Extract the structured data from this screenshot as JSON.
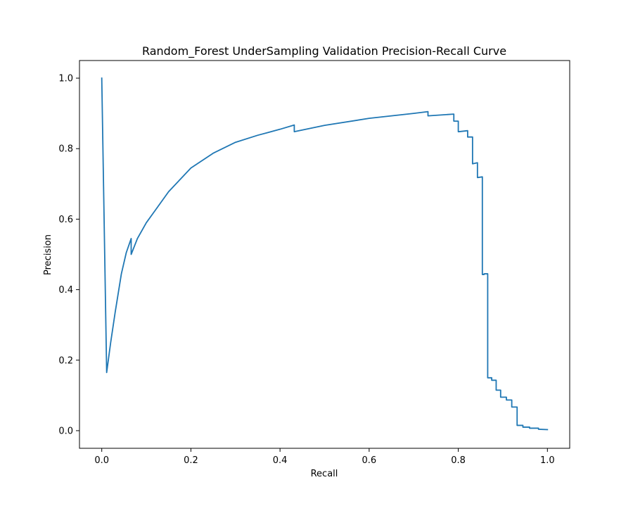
{
  "chart_data": {
    "type": "line",
    "title": "Random_Forest UnderSampling Validation Precision-Recall Curve",
    "xlabel": "Recall",
    "ylabel": "Precision",
    "xlim": [
      -0.05,
      1.05
    ],
    "ylim": [
      -0.05,
      1.05
    ],
    "xticks": [
      0.0,
      0.2,
      0.4,
      0.6,
      0.8,
      1.0
    ],
    "yticks": [
      0.0,
      0.2,
      0.4,
      0.6,
      0.8,
      1.0
    ],
    "xtick_labels": [
      "0.0",
      "0.2",
      "0.4",
      "0.6",
      "0.8",
      "1.0"
    ],
    "ytick_labels": [
      "0.0",
      "0.2",
      "0.4",
      "0.6",
      "0.8",
      "1.0"
    ],
    "grid": false,
    "line_color": "#1f77b4",
    "series": [
      {
        "x": [
          0.0,
          0.011,
          0.02,
          0.03,
          0.044,
          0.055,
          0.066,
          0.066,
          0.08,
          0.1,
          0.12,
          0.15,
          0.2,
          0.25,
          0.3,
          0.35,
          0.4,
          0.432,
          0.432,
          0.5,
          0.6,
          0.7,
          0.732,
          0.732,
          0.79,
          0.79,
          0.8,
          0.8,
          0.821,
          0.821,
          0.832,
          0.832,
          0.843,
          0.843,
          0.854,
          0.854,
          0.858,
          0.858,
          0.866,
          0.866,
          0.875,
          0.875,
          0.885,
          0.885,
          0.895,
          0.895,
          0.908,
          0.908,
          0.92,
          0.92,
          0.932,
          0.932,
          0.945,
          0.945,
          0.96,
          0.96,
          0.98,
          0.98,
          1.0
        ],
        "y": [
          1.0,
          0.165,
          0.25,
          0.335,
          0.445,
          0.505,
          0.545,
          0.5,
          0.545,
          0.59,
          0.625,
          0.678,
          0.745,
          0.787,
          0.818,
          0.838,
          0.855,
          0.867,
          0.848,
          0.866,
          0.886,
          0.9,
          0.905,
          0.893,
          0.898,
          0.878,
          0.878,
          0.848,
          0.851,
          0.833,
          0.833,
          0.757,
          0.76,
          0.718,
          0.72,
          0.443,
          0.443,
          0.445,
          0.445,
          0.15,
          0.15,
          0.143,
          0.143,
          0.115,
          0.115,
          0.095,
          0.095,
          0.087,
          0.087,
          0.067,
          0.067,
          0.015,
          0.015,
          0.01,
          0.01,
          0.007,
          0.007,
          0.004,
          0.003
        ]
      }
    ]
  }
}
